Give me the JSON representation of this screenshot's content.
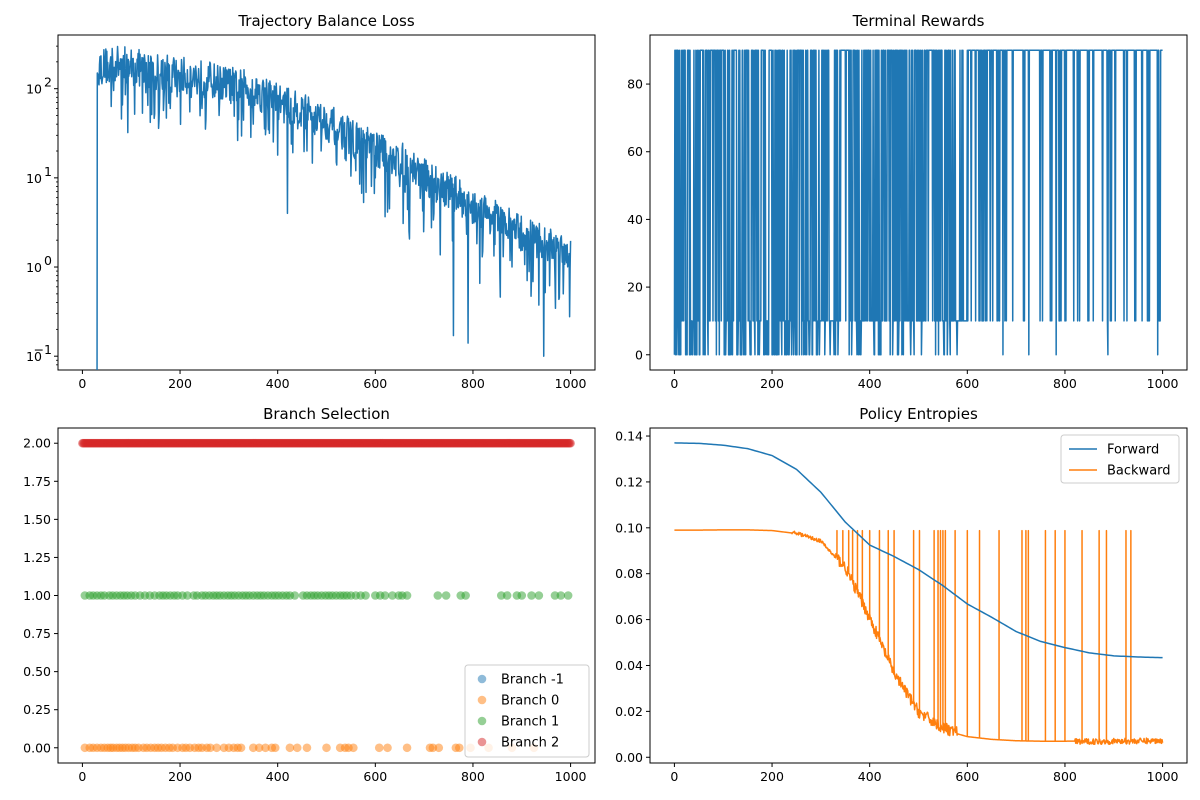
{
  "chart_data": [
    {
      "type": "line",
      "title": "Trajectory Balance Loss",
      "xlabel": "",
      "ylabel": "",
      "yscale": "log",
      "xlim": [
        -50,
        1050
      ],
      "ylim": [
        0.07,
        400
      ],
      "xticks": [
        0,
        200,
        400,
        600,
        800,
        1000
      ],
      "yticks": [
        0.1,
        1,
        10,
        100
      ],
      "ytick_labels": [
        "10",
        "10",
        "10",
        "10"
      ],
      "ytick_exponents": [
        "−1",
        "0",
        "1",
        "2"
      ],
      "grid": false,
      "color": "#1f77b4",
      "series": [
        {
          "x": [
            30,
            30.5,
            32,
            40,
            60,
            80,
            100,
            120,
            140,
            160,
            180,
            200,
            220,
            240,
            260,
            280,
            300,
            320,
            340,
            360,
            380,
            400,
            420,
            440,
            460,
            480,
            500,
            520,
            540,
            560,
            580,
            600,
            620,
            640,
            660,
            680,
            700,
            720,
            740,
            760,
            780,
            800,
            820,
            840,
            860,
            880,
            900,
            920,
            940,
            960,
            980,
            1000
          ],
          "y": [
            0.07,
            150,
            160,
            170,
            175,
            180,
            170,
            160,
            150,
            145,
            140,
            135,
            130,
            125,
            120,
            110,
            105,
            100,
            95,
            85,
            80,
            70,
            60,
            55,
            50,
            45,
            40,
            35,
            30,
            25,
            22,
            20,
            18,
            16,
            14,
            12,
            10,
            8.5,
            7.5,
            6.5,
            5.5,
            4.5,
            4,
            3.5,
            3,
            2.6,
            2.2,
            2,
            1.8,
            1.6,
            1.5,
            1.4
          ],
          "dips": [
            [
              55,
              120
            ],
            [
              130,
              90
            ],
            [
              180,
              60
            ],
            [
              220,
              55
            ],
            [
              245,
              60
            ],
            [
              280,
              50
            ],
            [
              320,
              45
            ],
            [
              350,
              40
            ],
            [
              400,
              18
            ],
            [
              420,
              4
            ],
            [
              460,
              20
            ],
            [
              520,
              15
            ],
            [
              560,
              12
            ],
            [
              600,
              10
            ],
            [
              650,
              8
            ],
            [
              700,
              5
            ],
            [
              720,
              4
            ],
            [
              760,
              0.17
            ],
            [
              790,
              0.14
            ],
            [
              820,
              1.5
            ],
            [
              880,
              1
            ],
            [
              920,
              0.8
            ],
            [
              945,
              0.1
            ],
            [
              985,
              0.5
            ]
          ]
        }
      ]
    },
    {
      "type": "line",
      "title": "Terminal Rewards",
      "xlabel": "",
      "ylabel": "",
      "xlim": [
        -50,
        1050
      ],
      "ylim": [
        -4.5,
        94.5
      ],
      "xticks": [
        0,
        200,
        400,
        600,
        800,
        1000
      ],
      "yticks": [
        0,
        20,
        40,
        60,
        80
      ],
      "grid": false,
      "color": "#1f77b4",
      "reward_levels": [
        0,
        10,
        90
      ],
      "series": [
        {
          "x_range": [
            0,
            1000
          ]
        }
      ]
    },
    {
      "type": "scatter",
      "title": "Branch Selection",
      "xlabel": "",
      "ylabel": "",
      "xlim": [
        -50,
        1050
      ],
      "ylim": [
        -0.1,
        2.1
      ],
      "xticks": [
        0,
        200,
        400,
        600,
        800,
        1000
      ],
      "yticks": [
        0.0,
        0.25,
        0.5,
        0.75,
        1.0,
        1.25,
        1.5,
        1.75,
        2.0
      ],
      "ytick_labels": [
        "0.00",
        "0.25",
        "0.50",
        "0.75",
        "1.00",
        "1.25",
        "1.50",
        "1.75",
        "2.00"
      ],
      "grid": false,
      "legend": "lower-right",
      "series": [
        {
          "name": "Branch -1",
          "color": "#1f77b4",
          "y": -1,
          "x": []
        },
        {
          "name": "Branch 0",
          "color": "#ff7f0e",
          "y": 0,
          "x": [
            5,
            15,
            22,
            30,
            38,
            45,
            52,
            58,
            63,
            70,
            76,
            82,
            88,
            95,
            102,
            108,
            115,
            125,
            132,
            140,
            148,
            155,
            162,
            170,
            178,
            185,
            195,
            205,
            212,
            220,
            230,
            238,
            245,
            255,
            262,
            275,
            290,
            300,
            310,
            318,
            325,
            350,
            362,
            375,
            388,
            395,
            425,
            440,
            460,
            500,
            528,
            538,
            545,
            555,
            608,
            625,
            665,
            712,
            718,
            730,
            765,
            772,
            795,
            832,
            880,
            925
          ]
        },
        {
          "name": "Branch 1",
          "color": "#2ca02c",
          "y": 1,
          "x": [
            5,
            15,
            22,
            30,
            38,
            45,
            55,
            62,
            70,
            78,
            85,
            92,
            100,
            108,
            118,
            128,
            138,
            148,
            158,
            165,
            172,
            180,
            188,
            195,
            205,
            215,
            228,
            235,
            245,
            252,
            260,
            268,
            275,
            282,
            290,
            298,
            305,
            312,
            320,
            328,
            335,
            342,
            350,
            358,
            365,
            372,
            380,
            388,
            395,
            402,
            410,
            418,
            425,
            435,
            452,
            460,
            468,
            475,
            482,
            490,
            498,
            505,
            512,
            520,
            528,
            535,
            542,
            550,
            560,
            570,
            580,
            600,
            610,
            620,
            635,
            648,
            655,
            665,
            728,
            745,
            775,
            785,
            858,
            870,
            890,
            900,
            920,
            935,
            968,
            980,
            995
          ]
        },
        {
          "name": "Branch 2",
          "color": "#d62728",
          "y": 2,
          "x_dense_range": [
            0,
            1000
          ]
        }
      ]
    },
    {
      "type": "line",
      "title": "Policy Entropies",
      "xlabel": "",
      "ylabel": "",
      "xlim": [
        -50,
        1050
      ],
      "ylim": [
        -0.0025,
        0.1435
      ],
      "xticks": [
        0,
        200,
        400,
        600,
        800,
        1000
      ],
      "yticks": [
        0.0,
        0.02,
        0.04,
        0.06,
        0.08,
        0.1,
        0.12,
        0.14
      ],
      "ytick_labels": [
        "0.00",
        "0.02",
        "0.04",
        "0.06",
        "0.08",
        "0.10",
        "0.12",
        "0.14"
      ],
      "grid": false,
      "legend": "top-right",
      "series": [
        {
          "name": "Forward",
          "color": "#1f77b4",
          "x": [
            0,
            50,
            100,
            150,
            200,
            250,
            300,
            350,
            400,
            450,
            500,
            550,
            600,
            650,
            700,
            750,
            800,
            850,
            900,
            950,
            1000
          ],
          "y": [
            0.137,
            0.1368,
            0.136,
            0.1345,
            0.1315,
            0.1255,
            0.1155,
            0.1025,
            0.0925,
            0.0875,
            0.0818,
            0.0748,
            0.0668,
            0.061,
            0.0548,
            0.0505,
            0.0478,
            0.0455,
            0.0442,
            0.0437,
            0.0434
          ]
        },
        {
          "name": "Backward",
          "color": "#ff7f0e",
          "x": [
            0,
            50,
            100,
            150,
            200,
            250,
            300,
            350,
            400,
            450,
            500,
            550,
            600,
            650,
            700,
            750,
            800,
            850,
            900,
            950,
            1000
          ],
          "y": [
            0.099,
            0.099,
            0.0991,
            0.0991,
            0.0988,
            0.0975,
            0.094,
            0.082,
            0.06,
            0.036,
            0.019,
            0.012,
            0.009,
            0.0078,
            0.0072,
            0.007,
            0.007,
            0.0071,
            0.0072,
            0.0073,
            0.0075
          ],
          "spikes": [
            333,
            345,
            357,
            365,
            375,
            385,
            400,
            420,
            438,
            450,
            490,
            502,
            532,
            540,
            545,
            550,
            555,
            575,
            600,
            625,
            665,
            712,
            720,
            725,
            760,
            780,
            800,
            835,
            870,
            885,
            925,
            935
          ]
        }
      ]
    }
  ]
}
